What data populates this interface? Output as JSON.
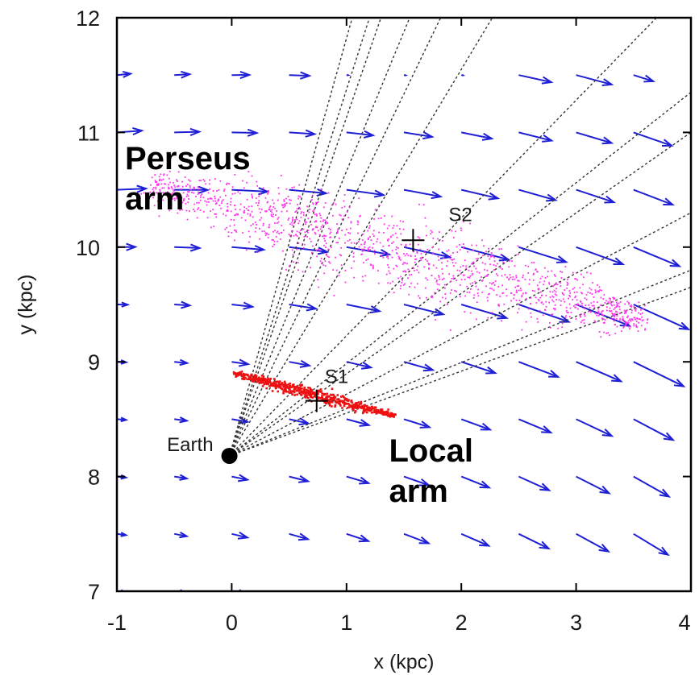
{
  "chart_data": {
    "type": "scatter",
    "xlabel": "x (kpc)",
    "ylabel": "y (kpc)",
    "xlim": [
      -1,
      4
    ],
    "ylim": [
      7,
      12
    ],
    "x_ticks": [
      "-1",
      "0",
      "1",
      "2",
      "3",
      "4"
    ],
    "y_ticks": [
      "7",
      "8",
      "9",
      "10",
      "11",
      "12"
    ],
    "grid": false,
    "colors": {
      "vectors": "#1f1fd6",
      "perseus_points": "#ff33ee",
      "local_points": "#ee1111",
      "sightlines": "#333333",
      "markers": "#000000"
    },
    "annotations": [
      {
        "key": "perseus",
        "text": "Perseus",
        "x": -0.93,
        "y": 10.68
      },
      {
        "key": "perseus2",
        "text": "arm",
        "x": -0.93,
        "y": 10.33
      },
      {
        "key": "local",
        "text": "Local",
        "x": 1.37,
        "y": 8.13
      },
      {
        "key": "local2",
        "text": "arm",
        "x": 1.37,
        "y": 7.78
      }
    ],
    "earth": {
      "label": "Earth",
      "x": -0.02,
      "y": 8.18
    },
    "sources": [
      {
        "label": "S1",
        "x": 0.74,
        "y": 8.66
      },
      {
        "label": "S2",
        "x": 1.58,
        "y": 10.06
      }
    ],
    "perseus_arm": {
      "start": [
        -0.7,
        10.55
      ],
      "end": [
        3.6,
        9.35
      ],
      "count": 1400
    },
    "local_arm": {
      "start": [
        0.02,
        8.9
      ],
      "end": [
        1.42,
        8.53
      ],
      "count": 600
    },
    "sightline_ends": [
      [
        1.05,
        12.0
      ],
      [
        1.2,
        12.0
      ],
      [
        1.3,
        12.0
      ],
      [
        1.55,
        12.0
      ],
      [
        1.82,
        12.0
      ],
      [
        2.27,
        12.0
      ],
      [
        3.7,
        12.0
      ],
      [
        4.0,
        11.35
      ],
      [
        4.0,
        11.0
      ],
      [
        4.0,
        10.3
      ],
      [
        4.0,
        9.8
      ],
      [
        4.0,
        9.65
      ]
    ],
    "velocity_field": {
      "grid_x": [
        -1,
        -0.5,
        0,
        0.5,
        1,
        1.5,
        2,
        2.5,
        3,
        3.5,
        4
      ],
      "grid_y": [
        7,
        7.5,
        8,
        8.5,
        9,
        9.5,
        10,
        10.5,
        11,
        11.5
      ],
      "description_scale": "field vectors in kpc-length units on plot"
    }
  }
}
